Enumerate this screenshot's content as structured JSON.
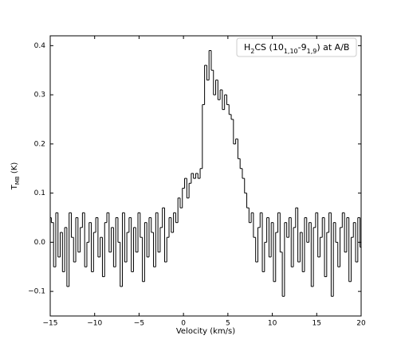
{
  "chart_data": {
    "type": "step",
    "annotation": [
      "H",
      "2",
      "CS (10",
      "1,10",
      "-9",
      "1,9",
      ") at A/B"
    ],
    "xlabel": "Velocity (km/s)",
    "ylabel": [
      "T",
      "MB",
      " (K)"
    ],
    "color": "#000000",
    "xlim": [
      -15,
      20
    ],
    "ylim": [
      -0.15,
      0.42
    ],
    "xticks": [
      {
        "value": -15,
        "label": "−15"
      },
      {
        "value": -10,
        "label": "−10"
      },
      {
        "value": -5,
        "label": "−5"
      },
      0,
      5,
      10,
      15,
      20
    ],
    "yticks": [
      {
        "value": -0.1,
        "label": "−0.1"
      },
      {
        "value": 0,
        "label": "0.0"
      },
      0.1,
      0.2,
      0.3,
      0.4
    ],
    "x": [
      -15,
      -14.75,
      -14.5,
      -14.25,
      -14,
      -13.75,
      -13.5,
      -13.25,
      -13,
      -12.75,
      -12.5,
      -12.25,
      -12,
      -11.75,
      -11.5,
      -11.25,
      -11,
      -10.75,
      -10.5,
      -10.25,
      -10,
      -9.75,
      -9.5,
      -9.25,
      -9,
      -8.75,
      -8.5,
      -8.25,
      -8,
      -7.75,
      -7.5,
      -7.25,
      -7,
      -6.75,
      -6.5,
      -6.25,
      -6,
      -5.75,
      -5.5,
      -5.25,
      -5,
      -4.75,
      -4.5,
      -4.25,
      -4,
      -3.75,
      -3.5,
      -3.25,
      -3,
      -2.75,
      -2.5,
      -2.25,
      -2,
      -1.75,
      -1.5,
      -1.25,
      -1,
      -0.75,
      -0.5,
      -0.25,
      0,
      0.25,
      0.5,
      0.75,
      1,
      1.25,
      1.5,
      1.75,
      2,
      2.25,
      2.5,
      2.75,
      3,
      3.25,
      3.5,
      3.75,
      4,
      4.25,
      4.5,
      4.75,
      5,
      5.25,
      5.5,
      5.75,
      6,
      6.25,
      6.5,
      6.75,
      7,
      7.25,
      7.5,
      7.75,
      8,
      8.25,
      8.5,
      8.75,
      9,
      9.25,
      9.5,
      9.75,
      10,
      10.25,
      10.5,
      10.75,
      11,
      11.25,
      11.5,
      11.75,
      12,
      12.25,
      12.5,
      12.75,
      13,
      13.25,
      13.5,
      13.75,
      14,
      14.25,
      14.5,
      14.75,
      15,
      15.25,
      15.5,
      15.75,
      16,
      16.25,
      16.5,
      16.75,
      17,
      17.25,
      17.5,
      17.75,
      18,
      18.25,
      18.5,
      18.75,
      19,
      19.25,
      19.5,
      19.75,
      20
    ],
    "values": [
      0.05,
      0.04,
      -0.05,
      0.06,
      -0.03,
      0.02,
      -0.06,
      0.03,
      -0.09,
      0.06,
      0.01,
      -0.04,
      0.05,
      -0.02,
      0.03,
      0.06,
      -0.05,
      0.0,
      0.04,
      -0.06,
      0.02,
      0.05,
      -0.03,
      0.01,
      -0.07,
      0.04,
      0.06,
      -0.02,
      0.03,
      -0.05,
      0.05,
      0.0,
      -0.09,
      0.06,
      -0.04,
      0.02,
      0.05,
      -0.06,
      0.03,
      -0.02,
      0.06,
      0.01,
      -0.08,
      0.04,
      -0.03,
      0.05,
      0.02,
      -0.05,
      0.06,
      -0.02,
      0.03,
      0.07,
      -0.04,
      0.01,
      0.05,
      0.02,
      0.06,
      0.04,
      0.09,
      0.07,
      0.11,
      0.13,
      0.09,
      0.12,
      0.14,
      0.13,
      0.14,
      0.13,
      0.15,
      0.28,
      0.36,
      0.33,
      0.39,
      0.35,
      0.3,
      0.33,
      0.29,
      0.31,
      0.27,
      0.3,
      0.28,
      0.26,
      0.25,
      0.2,
      0.21,
      0.17,
      0.15,
      0.13,
      0.1,
      0.07,
      0.04,
      0.06,
      0.01,
      -0.04,
      0.03,
      0.06,
      -0.06,
      0.0,
      0.05,
      -0.03,
      0.04,
      -0.08,
      0.02,
      0.06,
      -0.02,
      -0.11,
      0.04,
      0.01,
      0.05,
      -0.05,
      0.03,
      0.07,
      -0.04,
      0.02,
      -0.06,
      0.05,
      0.0,
      0.04,
      -0.09,
      0.03,
      0.06,
      -0.03,
      0.01,
      0.05,
      -0.07,
      0.02,
      0.06,
      -0.11,
      0.04,
      0.0,
      -0.05,
      0.03,
      0.06,
      -0.02,
      0.05,
      -0.08,
      0.01,
      0.04,
      -0.04,
      0.05,
      -0.01
    ]
  }
}
